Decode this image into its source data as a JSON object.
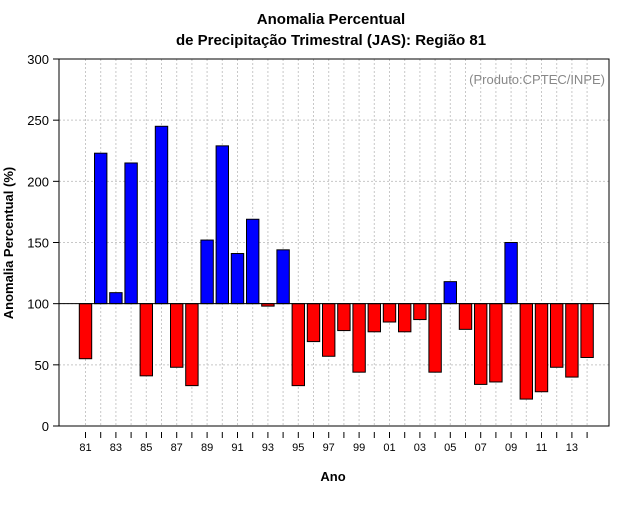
{
  "chart_data": {
    "type": "bar",
    "title_line1": "Anomalia Percentual",
    "title_line2": "de Precipitação Trimestral (JAS): Região 81",
    "annotation": "(Produto:CPTEC/INPE)",
    "xlabel": "Ano",
    "ylabel": "Anomalia Percentual (%)",
    "ylim": [
      0,
      300
    ],
    "yticks": [
      0,
      50,
      100,
      150,
      200,
      250,
      300
    ],
    "baseline": 100,
    "xtick_labels": [
      "81",
      "83",
      "85",
      "87",
      "89",
      "91",
      "93",
      "95",
      "97",
      "99",
      "01",
      "03",
      "05",
      "07",
      "09",
      "11",
      "13"
    ],
    "categories": [
      "1981",
      "1982",
      "1983",
      "1984",
      "1985",
      "1986",
      "1987",
      "1988",
      "1989",
      "1990",
      "1991",
      "1992",
      "1993",
      "1994",
      "1995",
      "1996",
      "1997",
      "1998",
      "1999",
      "2000",
      "2001",
      "2002",
      "2003",
      "2004",
      "2005",
      "2006",
      "2007",
      "2008",
      "2009",
      "2010",
      "2011",
      "2012",
      "2013",
      "2014"
    ],
    "values": [
      55,
      223,
      109,
      215,
      41,
      245,
      48,
      33,
      152,
      229,
      141,
      169,
      98,
      144,
      33,
      69,
      57,
      78,
      44,
      77,
      85,
      77,
      87,
      44,
      118,
      79,
      34,
      36,
      150,
      22,
      28,
      48,
      40,
      56
    ],
    "above_color": "#0000ff",
    "below_color": "#ff0000",
    "grid": true
  }
}
